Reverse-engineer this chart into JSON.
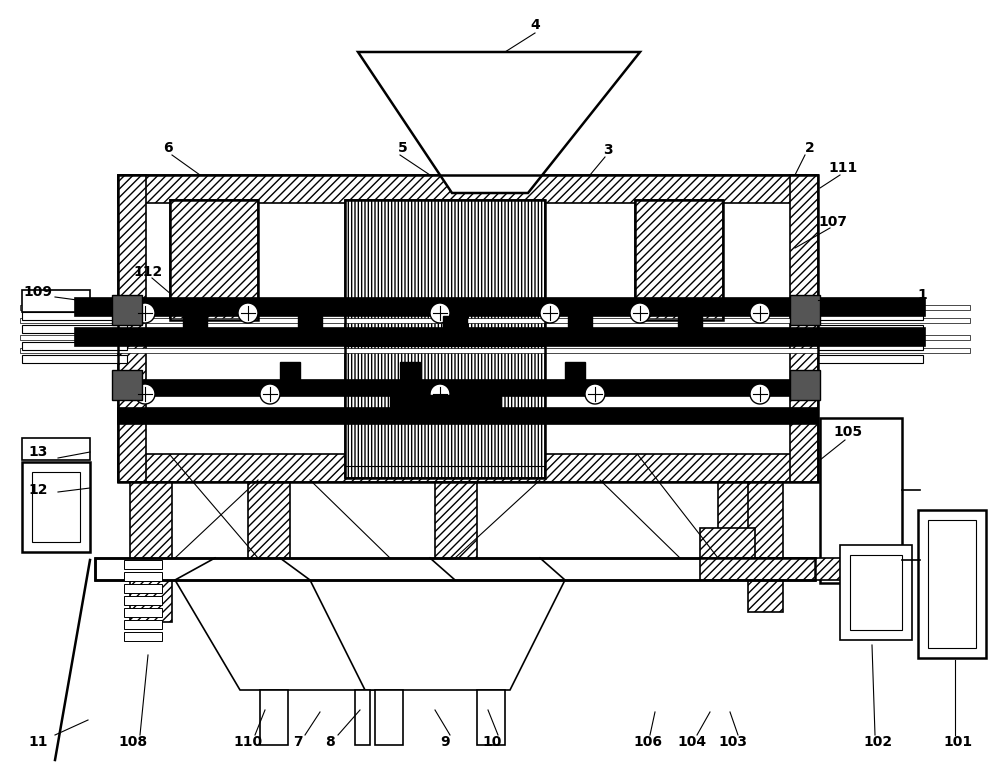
{
  "bg_color": "#ffffff",
  "line_color": "#000000",
  "figsize": [
    10.0,
    7.78
  ],
  "dpi": 100,
  "labels": [
    [
      "4",
      535,
      25
    ],
    [
      "3",
      608,
      150
    ],
    [
      "2",
      810,
      148
    ],
    [
      "1",
      922,
      295
    ],
    [
      "111",
      843,
      168
    ],
    [
      "107",
      833,
      222
    ],
    [
      "6",
      168,
      148
    ],
    [
      "5",
      403,
      148
    ],
    [
      "112",
      148,
      272
    ],
    [
      "109",
      38,
      292
    ],
    [
      "13",
      38,
      452
    ],
    [
      "12",
      38,
      490
    ],
    [
      "11",
      38,
      742
    ],
    [
      "108",
      133,
      742
    ],
    [
      "110",
      248,
      742
    ],
    [
      "7",
      298,
      742
    ],
    [
      "8",
      330,
      742
    ],
    [
      "9",
      445,
      742
    ],
    [
      "10",
      492,
      742
    ],
    [
      "106",
      648,
      742
    ],
    [
      "104",
      692,
      742
    ],
    [
      "103",
      733,
      742
    ],
    [
      "105",
      848,
      432
    ],
    [
      "102",
      878,
      742
    ],
    [
      "101",
      958,
      742
    ]
  ]
}
